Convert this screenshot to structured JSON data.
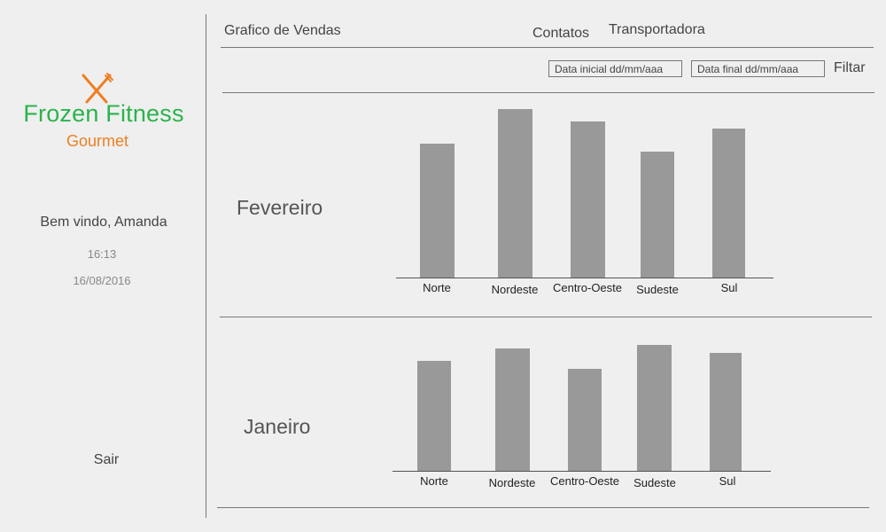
{
  "sidebar": {
    "brand_name": "Frozen Fitness",
    "brand_sub": "Gourmet",
    "welcome": "Bem vindo, Amanda",
    "time": "16:13",
    "date": "16/08/2016",
    "logout_label": "Sair",
    "brand_green": "#2bb34b",
    "brand_orange": "#ee7f22",
    "logo_icon": "fork-knife-icon"
  },
  "nav": {
    "sales_chart": "Grafico de Vendas",
    "contacts": "Contatos",
    "carrier": "Transportadora"
  },
  "filter": {
    "start_placeholder": "Data inicial dd/mm/aaa",
    "end_placeholder": "Data final dd/mm/aaa",
    "button_label": "Filtar"
  },
  "months": {
    "first": "Fevereiro",
    "second": "Janeiro"
  },
  "chart_data": [
    {
      "type": "bar",
      "title": "",
      "categories": [
        "Norte",
        "Nordeste",
        "Centro-Oeste",
        "Sudeste",
        "Sul"
      ],
      "values": [
        151,
        190,
        176,
        142,
        168
      ],
      "bar_color": "#999999"
    },
    {
      "type": "bar",
      "title": "",
      "categories": [
        "Norte",
        "Nordeste",
        "Centro-Oeste",
        "Sudeste",
        "Sul"
      ],
      "values": [
        124,
        138,
        115,
        142,
        133
      ],
      "bar_color": "#999999"
    }
  ]
}
